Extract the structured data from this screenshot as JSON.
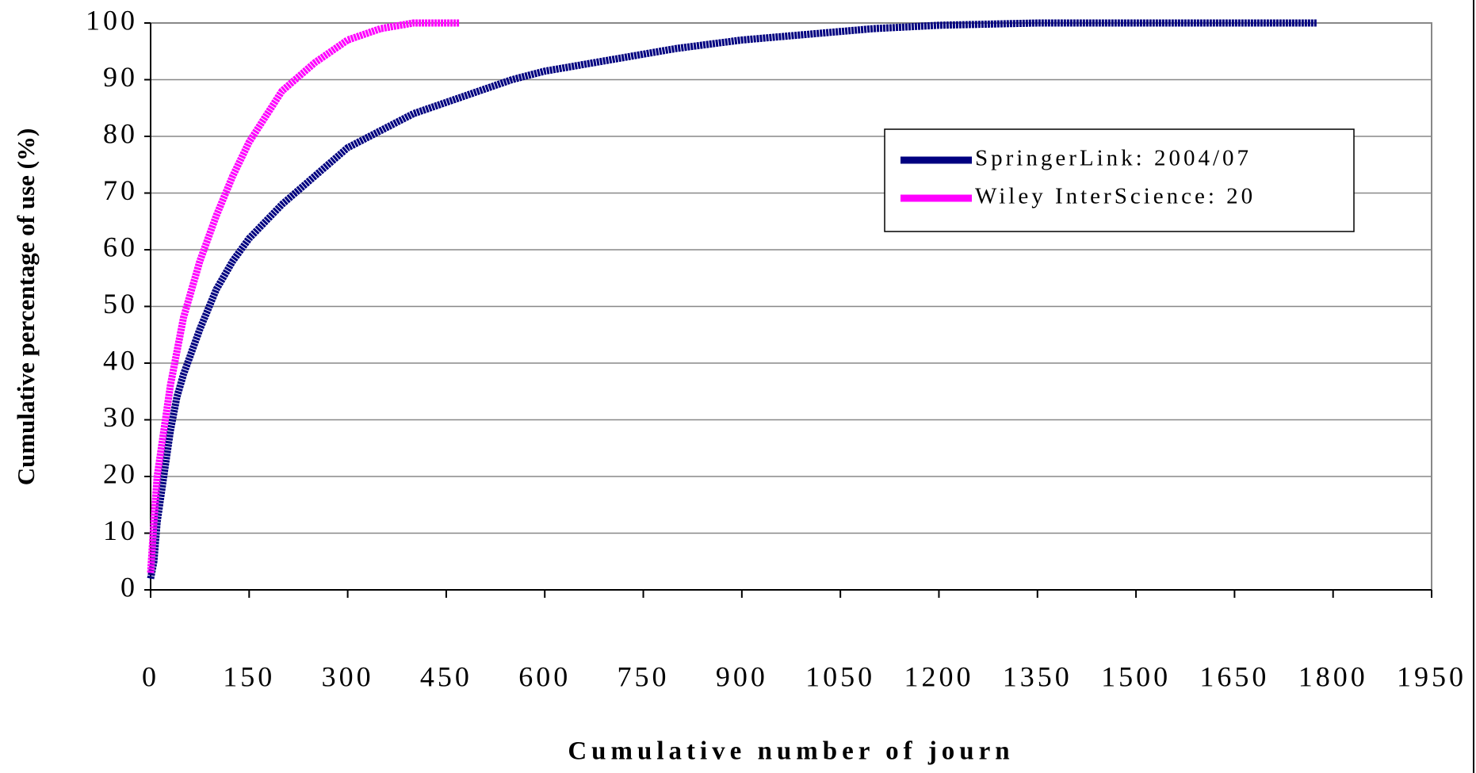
{
  "chart_data": {
    "type": "line",
    "y_label": "Cumulative percentage of use (%)",
    "x_label": "Cumulative number of journ",
    "xlim": [
      0,
      1950
    ],
    "xticks": [
      0,
      150,
      300,
      450,
      600,
      750,
      900,
      1050,
      1200,
      1350,
      1500,
      1650,
      1800,
      1950
    ],
    "ylim": [
      0,
      100
    ],
    "yticks": [
      0,
      10,
      20,
      30,
      40,
      50,
      60,
      70,
      80,
      90,
      100
    ],
    "grid": true,
    "legend": "upper right",
    "series": [
      {
        "name": "SpringerLink: 2004/07",
        "color": "#000080",
        "x": [
          0,
          5,
          10,
          20,
          30,
          40,
          50,
          75,
          100,
          125,
          150,
          200,
          250,
          300,
          350,
          400,
          450,
          500,
          550,
          600,
          700,
          800,
          900,
          1000,
          1100,
          1200,
          1350,
          1775
        ],
        "values": [
          2,
          5,
          12,
          20,
          28,
          34,
          38,
          46,
          53,
          58,
          62,
          68,
          73,
          78,
          81,
          84,
          86,
          88,
          90,
          91.5,
          93.5,
          95.5,
          97,
          98,
          99,
          99.6,
          100,
          100
        ]
      },
      {
        "name": "Wiley InterScience: 20",
        "color": "#ff00ff",
        "x": [
          0,
          5,
          10,
          20,
          30,
          40,
          50,
          75,
          100,
          125,
          150,
          200,
          250,
          300,
          350,
          400,
          470
        ],
        "values": [
          3,
          12,
          20,
          28,
          36,
          42,
          48,
          58,
          66,
          73,
          79,
          88,
          93,
          97,
          99,
          100,
          100
        ]
      }
    ]
  }
}
